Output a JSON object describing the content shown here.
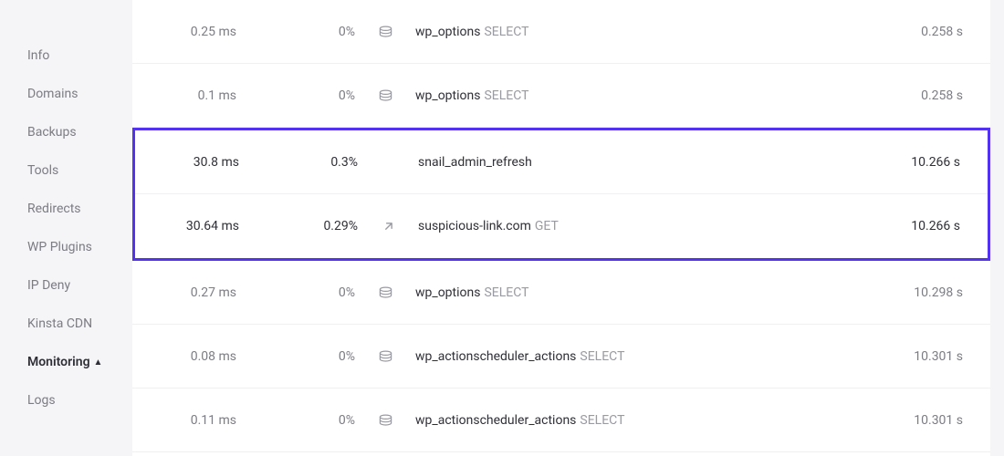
{
  "sidebar": {
    "items": [
      {
        "label": "Info",
        "active": false
      },
      {
        "label": "Domains",
        "active": false
      },
      {
        "label": "Backups",
        "active": false
      },
      {
        "label": "Tools",
        "active": false
      },
      {
        "label": "Redirects",
        "active": false
      },
      {
        "label": "WP Plugins",
        "active": false
      },
      {
        "label": "IP Deny",
        "active": false
      },
      {
        "label": "Kinsta CDN",
        "active": false
      },
      {
        "label": "Monitoring",
        "active": true,
        "bullet": "▲"
      },
      {
        "label": "Logs",
        "active": false
      }
    ]
  },
  "rows": [
    {
      "duration": "0.25 ms",
      "percent": "0%",
      "icon": "db",
      "name": "wp_options",
      "method": "SELECT",
      "time": "0.258 s",
      "dark": false
    },
    {
      "duration": "0.1 ms",
      "percent": "0%",
      "icon": "db",
      "name": "wp_options",
      "method": "SELECT",
      "time": "0.258 s",
      "dark": false
    },
    {
      "duration": "30.8 ms",
      "percent": "0.3%",
      "icon": "",
      "name": "snail_admin_refresh",
      "method": "",
      "time": "10.266 s",
      "dark": true
    },
    {
      "duration": "30.64 ms",
      "percent": "0.29%",
      "icon": "ext",
      "name": "suspicious-link.com",
      "method": "GET",
      "time": "10.266 s",
      "dark": true
    },
    {
      "duration": "0.27 ms",
      "percent": "0%",
      "icon": "db",
      "name": "wp_options",
      "method": "SELECT",
      "time": "10.298 s",
      "dark": false
    },
    {
      "duration": "0.08 ms",
      "percent": "0%",
      "icon": "db",
      "name": "wp_actionscheduler_actions",
      "method": "SELECT",
      "time": "10.301 s",
      "dark": false
    },
    {
      "duration": "0.11 ms",
      "percent": "0%",
      "icon": "db",
      "name": "wp_actionscheduler_actions",
      "method": "SELECT",
      "time": "10.301 s",
      "dark": false
    }
  ],
  "highlight": {
    "start": 2,
    "end": 3,
    "border_color": "#5333ed"
  },
  "colors": {
    "page_bg": "#f5f5f7",
    "panel_bg": "#ffffff",
    "text_muted": "#7c7c84",
    "text_dark": "#2f2f37",
    "divider": "#f0f0f2",
    "icon": "#8f8f97",
    "method": "#9a9aa2"
  }
}
